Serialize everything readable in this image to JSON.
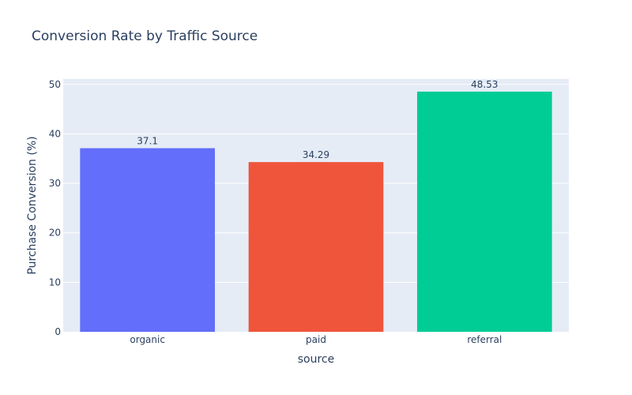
{
  "chart_data": {
    "type": "bar",
    "title": "Conversion Rate by Traffic Source",
    "xlabel": "source",
    "ylabel": "Purchase Conversion (%)",
    "categories": [
      "organic",
      "paid",
      "referral"
    ],
    "values": [
      37.1,
      34.29,
      48.53
    ],
    "data_labels": [
      "37.1",
      "34.29",
      "48.53"
    ],
    "colors": [
      "#636efa",
      "#ef553b",
      "#00cc96"
    ],
    "ylim": [
      0,
      51.08
    ],
    "yticks": [
      0,
      10,
      20,
      30,
      40,
      50
    ],
    "grid": true,
    "legend": "none",
    "plot_background": "#e5ecf6",
    "grid_color": "#ffffff",
    "text_color": "#2a3f5f"
  }
}
